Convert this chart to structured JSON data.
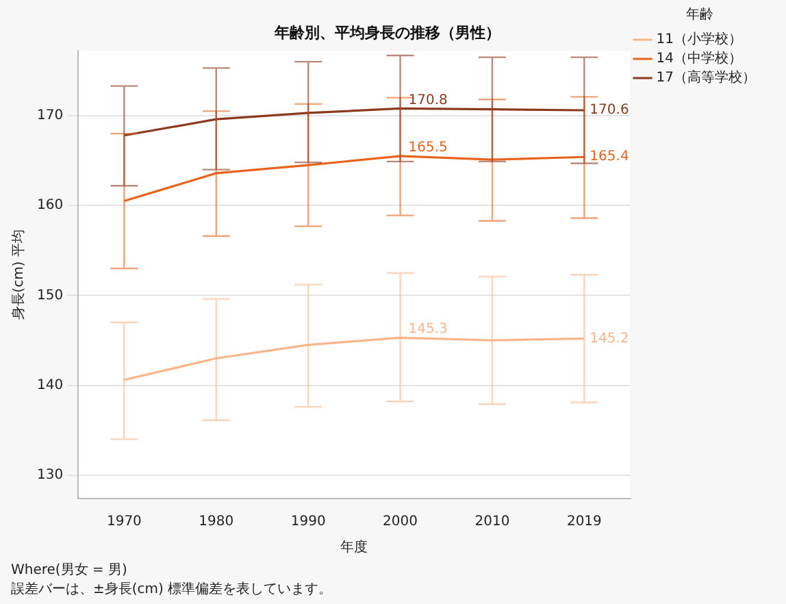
{
  "chart_data": {
    "type": "line",
    "title": "年齢別、平均身長の推移（男性）",
    "xlabel": "年度",
    "ylabel": "身長(cm) 平均",
    "legend_title": "年齢",
    "categories": [
      "1970",
      "1980",
      "1990",
      "2000",
      "2010",
      "2019"
    ],
    "series": [
      {
        "name": "11（小学校）",
        "color": "#f9b589",
        "values": [
          140.6,
          143.0,
          144.5,
          145.3,
          145.0,
          145.2
        ],
        "errors": [
          [
            134.0,
            147.0
          ],
          [
            136.1,
            149.6
          ],
          [
            137.6,
            151.2
          ],
          [
            138.2,
            152.5
          ],
          [
            137.9,
            152.1
          ],
          [
            138.1,
            152.3
          ]
        ],
        "value_labels": [
          null,
          null,
          null,
          "145.3",
          null,
          "145.2"
        ]
      },
      {
        "name": "14（中学校）",
        "color": "#e8641e",
        "values": [
          160.5,
          163.6,
          164.5,
          165.5,
          165.1,
          165.4
        ],
        "errors": [
          [
            153.0,
            168.0
          ],
          [
            156.6,
            170.5
          ],
          [
            157.7,
            171.3
          ],
          [
            158.9,
            172.0
          ],
          [
            158.3,
            171.8
          ],
          [
            158.6,
            172.1
          ]
        ],
        "value_labels": [
          null,
          null,
          null,
          "165.5",
          null,
          "165.4"
        ]
      },
      {
        "name": "17（高等学校）",
        "color": "#8b3a1f",
        "values": [
          167.8,
          169.6,
          170.3,
          170.8,
          170.7,
          170.6
        ],
        "errors": [
          [
            162.2,
            173.3
          ],
          [
            164.0,
            175.3
          ],
          [
            164.8,
            176.0
          ],
          [
            164.9,
            176.7
          ],
          [
            164.9,
            176.5
          ],
          [
            164.7,
            176.5
          ]
        ],
        "value_labels": [
          null,
          null,
          null,
          "170.8",
          null,
          "170.6"
        ]
      }
    ],
    "ylim": [
      127.4,
      177.2
    ],
    "yticks": [
      130,
      140,
      150,
      160,
      170
    ],
    "grid": "y",
    "legend": "right",
    "marker": "none",
    "line_style": "solid",
    "annotations": [
      "Where(男女 = 男)",
      "誤差バーは、±身長(cm) 標準偏差を表しています。"
    ]
  }
}
